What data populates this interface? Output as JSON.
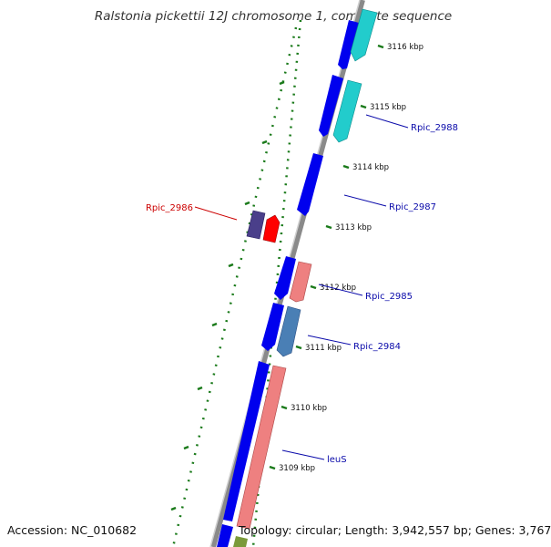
{
  "title": "Ralstonia pickettii 12J chromosome 1, complete sequence",
  "accession_text": "Accession: NC_010682",
  "summary_text": "Topology: circular; Length: 3,942,557 bp; Genes: 3,767",
  "colors": {
    "background": "#ffffff",
    "backbone": "#8a8a8a",
    "backbone_highlight": "#cfcfcf",
    "tick_green": "#1a7a1a",
    "label_blue": "#0a0aaa",
    "label_red": "#cc0000",
    "gene_blue": "#0000ee",
    "gene_cyan": "#22cccc",
    "gene_pink": "#ee8080",
    "gene_steel": "#4a7fb5",
    "gene_navy": "#4a3f8a",
    "gene_red": "#ff0000",
    "gene_olive": "#7a9a3a"
  },
  "ticks": [
    {
      "label": "3116 kbp"
    },
    {
      "label": "3115 kbp"
    },
    {
      "label": "3114 kbp"
    },
    {
      "label": "3113 kbp"
    },
    {
      "label": "3112 kbp"
    },
    {
      "label": "3111 kbp"
    },
    {
      "label": "3110 kbp"
    },
    {
      "label": "3109 kbp"
    }
  ],
  "genes": [
    {
      "label": "Rpic_2988",
      "color": "blue"
    },
    {
      "label": "Rpic_2987",
      "color": "blue"
    },
    {
      "label": "Rpic_2986",
      "color": "red"
    },
    {
      "label": "Rpic_2985",
      "color": "blue"
    },
    {
      "label": "Rpic_2984",
      "color": "blue"
    },
    {
      "label": "leuS",
      "color": "blue"
    }
  ]
}
